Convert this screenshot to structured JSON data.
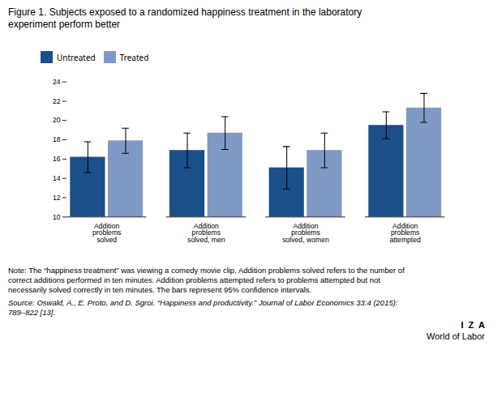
{
  "chart_data": {
    "type": "bar",
    "title": "Figure 1. Subjects exposed to a randomized happiness treatment in the laboratory\nexperiment perform better",
    "categories": [
      "Addition\nproblems\nsolved",
      "Addition\nproblems\nsolved, men",
      "Addition\nproblems\nsolved, women",
      "Addition\nproblems\nattempted"
    ],
    "series": [
      {
        "name": "Untreated",
        "color": "#1a4f8a",
        "values": [
          16.2,
          16.9,
          15.1,
          19.5
        ],
        "errors": [
          1.6,
          1.8,
          2.2,
          1.4
        ]
      },
      {
        "name": "Treated",
        "color": "#8098c4",
        "values": [
          17.9,
          18.7,
          16.9,
          21.3
        ],
        "errors": [
          1.3,
          1.7,
          1.8,
          1.5
        ]
      }
    ],
    "ylim": [
      10,
      24
    ],
    "yticks": [
      10,
      12,
      14,
      16,
      18,
      20,
      22,
      24
    ],
    "grid": false,
    "note": "Note: The “happiness treatment” was viewing a comedy movie clip. Addition problems solved refers to the number of\ncorrect additions performed in ten minutes. Addition problems attempted refers to problems attempted but not\nnecessarily solved correctly in ten minutes. The bars represent 95% confidence intervals.",
    "source": "Source: Oswald, A., E. Proto, and D. Sgroi. “Happiness and productivity.” Journal of Labor Economics 33:4 (2015):\n789–822 [13].",
    "annotations": [
      "I  Z  A",
      "World of Labor"
    ]
  }
}
